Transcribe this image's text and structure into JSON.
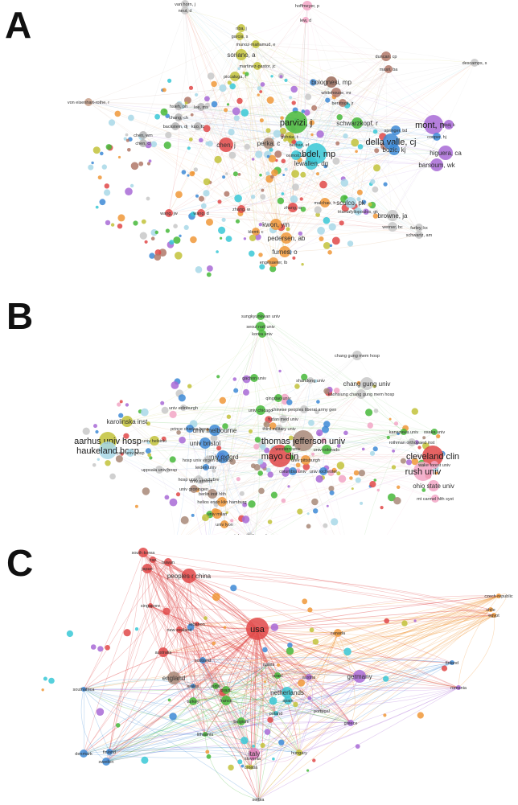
{
  "panels": [
    {
      "letter": "A",
      "nodes": [
        {
          "label": "van horn, j",
          "c": "#c8c8c8",
          "s": 5,
          "big": 0
        },
        {
          "label": "neut, d",
          "c": "#c8c8c8",
          "s": 5,
          "big": 0
        },
        {
          "label": "hoffmeyer, p",
          "c": "#f2a6c6",
          "s": 6,
          "big": 0
        },
        {
          "label": "lew, d",
          "c": "#f2a6c6",
          "s": 4,
          "big": 0
        },
        {
          "label": "riba, j",
          "c": "#c2c23a",
          "s": 5,
          "big": 0
        },
        {
          "label": "garcia, s",
          "c": "#c2c23a",
          "s": 5,
          "big": 0
        },
        {
          "label": "munoz-mahamud, e",
          "c": "#c2c23a",
          "s": 5,
          "big": 0
        },
        {
          "label": "soriano, a",
          "c": "#c2c23a",
          "s": 7,
          "big": 1
        },
        {
          "label": "martinez-pastor, jc",
          "c": "#c2c23a",
          "s": 5,
          "big": 0
        },
        {
          "label": "piccaluga, f",
          "c": "#c2c23a",
          "s": 6,
          "big": 0
        },
        {
          "label": "duncan, cp",
          "c": "#b07868",
          "s": 6,
          "big": 0
        },
        {
          "label": "masri, ba",
          "c": "#b07868",
          "s": 5,
          "big": 0
        },
        {
          "label": "descamps, s",
          "c": "#c8c8c8",
          "s": 5,
          "big": 0
        },
        {
          "label": "bolognesi, mp",
          "c": "#9a6a58",
          "s": 7,
          "big": 1
        },
        {
          "label": "whitehouse, mr",
          "c": "#b07868",
          "s": 6,
          "big": 0
        },
        {
          "label": "berstock, jr",
          "c": "#b07868",
          "s": 5,
          "big": 0
        },
        {
          "label": "von eisenhart-rothe, r",
          "c": "#c8a08a",
          "s": 5,
          "big": 0
        },
        {
          "label": "hsieh, ph",
          "c": "#b4b4b4",
          "s": 5,
          "big": 0
        },
        {
          "label": "lee, ms",
          "c": "#b4b4b4",
          "s": 5,
          "big": 0
        },
        {
          "label": "chang, ch",
          "c": "#b4b4b4",
          "s": 5,
          "big": 0
        },
        {
          "label": "parvizi, j",
          "c": "#46b83a",
          "s": 14,
          "big": 2
        },
        {
          "label": "schwarzkopf, r",
          "c": "#46b83a",
          "s": 7,
          "big": 1
        },
        {
          "label": "mont, ma",
          "c": "#a86ad6",
          "s": 12,
          "big": 2
        },
        {
          "label": "issa, k",
          "c": "#a86ad6",
          "s": 6,
          "big": 0
        },
        {
          "label": "higuera, ca",
          "c": "#a86ad6",
          "s": 9,
          "big": 1
        },
        {
          "label": "barsoum, wk",
          "c": "#a86ad6",
          "s": 8,
          "big": 1
        },
        {
          "label": "della valle, cj",
          "c": "#3d8ad6",
          "s": 10,
          "big": 2
        },
        {
          "label": "bozic, kj",
          "c": "#3d8ad6",
          "s": 7,
          "big": 1
        },
        {
          "label": "abdel, mp",
          "c": "#38c8d6",
          "s": 13,
          "big": 2
        },
        {
          "label": "lewallen, dg",
          "c": "#38c8d6",
          "s": 8,
          "big": 1
        },
        {
          "label": "chen, wm",
          "c": "#b4b4b4",
          "s": 5,
          "big": 0
        },
        {
          "label": "chen, cf",
          "c": "#b4b4b4",
          "s": 5,
          "big": 0
        },
        {
          "label": "chen, j",
          "c": "#e04848",
          "s": 9,
          "big": 1
        },
        {
          "label": "perka, c",
          "c": "#a88878",
          "s": 7,
          "big": 1
        },
        {
          "label": "zhang, w",
          "c": "#e04848",
          "s": 6,
          "big": 0
        },
        {
          "label": "wang, d",
          "c": "#e04848",
          "s": 5,
          "big": 0
        },
        {
          "label": "malchau, h",
          "c": "#f09838",
          "s": 6,
          "big": 0
        },
        {
          "label": "sculco, pk",
          "c": "#a8d8e8",
          "s": 7,
          "big": 1
        },
        {
          "label": "triantafyllopoulos, gk",
          "c": "#a8d8e8",
          "s": 5,
          "big": 0
        },
        {
          "label": "browne, ja",
          "c": "#c8c8c8",
          "s": 7,
          "big": 1
        },
        {
          "label": "werner, bc",
          "c": "#c8c8c8",
          "s": 6,
          "big": 0
        },
        {
          "label": "farley, kx",
          "c": "#c8c8c8",
          "s": 5,
          "big": 0
        },
        {
          "label": "schwartz, am",
          "c": "#c8c8c8",
          "s": 5,
          "big": 0
        },
        {
          "label": "kwon, ym",
          "c": "#f09838",
          "s": 7,
          "big": 1
        },
        {
          "label": "klemt, c",
          "c": "#f09838",
          "s": 5,
          "big": 0
        },
        {
          "label": "pedersen, ab",
          "c": "#f09838",
          "s": 7,
          "big": 1
        },
        {
          "label": "furnes, o",
          "c": "#f09838",
          "s": 7,
          "big": 1
        },
        {
          "label": "engesaeter, lb",
          "c": "#f09838",
          "s": 6,
          "big": 0
        },
        {
          "label": "cooper, hj",
          "c": "#3d8ad6",
          "s": 5,
          "big": 0
        },
        {
          "label": "springer, bd",
          "c": "#3d8ad6",
          "s": 6,
          "big": 0
        },
        {
          "label": "gehrke, t",
          "c": "#c2c23a",
          "s": 6,
          "big": 0
        },
        {
          "label": "osmon, dr",
          "c": "#38c8d6",
          "s": 6,
          "big": 0
        },
        {
          "label": "berbari, ef",
          "c": "#38c8d6",
          "s": 5,
          "big": 0
        },
        {
          "label": "backstein, dj",
          "c": "#b4b4b4",
          "s": 5,
          "big": 0
        },
        {
          "label": "kuo, fc",
          "c": "#b4b4b4",
          "s": 5,
          "big": 0
        },
        {
          "label": "zhang, w",
          "c": "#e04848",
          "s": 5,
          "big": 0
        },
        {
          "label": "wang, jw",
          "c": "#e04848",
          "s": 5,
          "big": 0
        }
      ]
    },
    {
      "letter": "B",
      "nodes": [
        {
          "label": "sungkyunkwan univ",
          "c": "#46b83a",
          "s": 5,
          "big": 0
        },
        {
          "label": "seoul natl univ",
          "c": "#46b83a",
          "s": 6,
          "big": 0
        },
        {
          "label": "korea univ",
          "c": "#46b83a",
          "s": 5,
          "big": 0
        },
        {
          "label": "gachon univ",
          "c": "#46b83a",
          "s": 5,
          "big": 0
        },
        {
          "label": "chang gung mem hosp",
          "c": "#c8c8c8",
          "s": 6,
          "big": 0
        },
        {
          "label": "shandong univ",
          "c": "#c8c8c8",
          "s": 4,
          "big": 0
        },
        {
          "label": "chang gung univ",
          "c": "#c8c8c8",
          "s": 8,
          "big": 1
        },
        {
          "label": "kaohsiung chang gung mem hosp",
          "c": "#c8c8c8",
          "s": 6,
          "big": 0
        },
        {
          "label": "qingdao univ",
          "c": "#46b83a",
          "s": 5,
          "big": 0
        },
        {
          "label": "univ chicago",
          "c": "#46b83a",
          "s": 6,
          "big": 0
        },
        {
          "label": "chinese peoples liberat army gen",
          "c": "#c8c8c8",
          "s": 5,
          "big": 0
        },
        {
          "label": "fudan med univ",
          "c": "#c8c8c8",
          "s": 5,
          "big": 0
        },
        {
          "label": "third military univ",
          "c": "#c8c8c8",
          "s": 5,
          "big": 0
        },
        {
          "label": "univ edinburgh",
          "c": "#c8c8c8",
          "s": 4,
          "big": 0
        },
        {
          "label": "karolinska inst",
          "c": "#c2c23a",
          "s": 7,
          "big": 1
        },
        {
          "label": "prince charles hosp",
          "c": "#3d8ad6",
          "s": 5,
          "big": 0
        },
        {
          "label": "univ melbourne",
          "c": "#3d8ad6",
          "s": 7,
          "big": 1
        },
        {
          "label": "aarhus univ hosp",
          "c": "#c2c23a",
          "s": 11,
          "big": 2
        },
        {
          "label": "univ helsinki",
          "c": "#c2c23a",
          "s": 6,
          "big": 0
        },
        {
          "label": "haukeland hosp",
          "c": "#a8d8e8",
          "s": 11,
          "big": 2
        },
        {
          "label": "oslo univ hosp",
          "c": "#a8d8e8",
          "s": 5,
          "big": 0
        },
        {
          "label": "univ bristol",
          "c": "#3d8ad6",
          "s": 7,
          "big": 1
        },
        {
          "label": "univ oxford",
          "c": "#3d8ad6",
          "s": 8,
          "big": 1
        },
        {
          "label": "hosp univ virgen del rocio",
          "c": "#c8c8c8",
          "s": 5,
          "big": 0
        },
        {
          "label": "uppsala univ hosp",
          "c": "#c8c8c8",
          "s": 5,
          "big": 0
        },
        {
          "label": "hosp univ 12 octubre",
          "c": "#c8c8c8",
          "s": 5,
          "big": 0
        },
        {
          "label": "univ groningen",
          "c": "#a88878",
          "s": 5,
          "big": 0
        },
        {
          "label": "thomas jefferson univ",
          "c": "#a88878",
          "s": 13,
          "big": 2
        },
        {
          "label": "mayo clin",
          "c": "#e04848",
          "s": 14,
          "big": 2
        },
        {
          "label": "cleveland clin",
          "c": "#e04848",
          "s": 13,
          "big": 2
        },
        {
          "label": "rush univ",
          "c": "#f2a6c6",
          "s": 12,
          "big": 2
        },
        {
          "label": "univ colorado",
          "c": "#46b83a",
          "s": 6,
          "big": 0
        },
        {
          "label": "univ pittsburgh",
          "c": "#f09838",
          "s": 6,
          "big": 0
        },
        {
          "label": "western univ",
          "c": "#46b83a",
          "s": 5,
          "big": 0
        },
        {
          "label": "univ rochester",
          "c": "#3d8ad6",
          "s": 5,
          "big": 0
        },
        {
          "label": "columbia univ",
          "c": "#3d8ad6",
          "s": 5,
          "big": 0
        },
        {
          "label": "rothman orthopaed inst",
          "c": "#c8c8c8",
          "s": 5,
          "big": 0
        },
        {
          "label": "wake forest univ",
          "c": "#f2a6c6",
          "s": 5,
          "big": 0
        },
        {
          "label": "ohio state univ",
          "c": "#f2a6c6",
          "s": 7,
          "big": 1
        },
        {
          "label": "mt carmel hlth syst",
          "c": "#f2a6c6",
          "s": 5,
          "big": 0
        },
        {
          "label": "kanazawa univ",
          "c": "#46b83a",
          "s": 4,
          "big": 0
        },
        {
          "label": "osaka univ",
          "c": "#46b83a",
          "s": 4,
          "big": 0
        },
        {
          "label": "berlin inst hlth",
          "c": "#a88878",
          "s": 6,
          "big": 0
        },
        {
          "label": "helios endo klin hamburg",
          "c": "#f09838",
          "s": 6,
          "big": 0
        },
        {
          "label": "univ milan",
          "c": "#f09838",
          "s": 6,
          "big": 0
        },
        {
          "label": "univ lyon",
          "c": "#f09838",
          "s": 5,
          "big": 0
        },
        {
          "label": "ctr hospitalier sud",
          "c": "#c8c8c8",
          "s": 4,
          "big": 0
        },
        {
          "label": "hop pitie salpetriere",
          "c": "#a86ad6",
          "s": 4,
          "big": 0
        },
        {
          "label": "univ hosp geneva",
          "c": "#a86ad6",
          "s": 4,
          "big": 0
        },
        {
          "label": "santa corona hosp",
          "c": "#f09838",
          "s": 4,
          "big": 0
        },
        {
          "label": "univ bern",
          "c": "#a86ad6",
          "s": 4,
          "big": 0
        },
        {
          "label": "ruhr univ bochum",
          "c": "#a86ad6",
          "s": 4,
          "big": 0
        },
        {
          "label": "aix marseille univ",
          "c": "#f2a6c6",
          "s": 4,
          "big": 0
        },
        {
          "label": "univ athens",
          "c": "#c8c8c8",
          "s": 4,
          "big": 0
        },
        {
          "label": "leiden univ",
          "c": "#3d8ad6",
          "s": 4,
          "big": 0
        }
      ]
    },
    {
      "letter": "C",
      "nodes": [
        {
          "label": "south korea",
          "c": "#e04848",
          "s": 6,
          "big": 0
        },
        {
          "label": "iran",
          "c": "#e04848",
          "s": 4,
          "big": 0
        },
        {
          "label": "taiwan",
          "c": "#e04848",
          "s": 5,
          "big": 0
        },
        {
          "label": "japan",
          "c": "#e04848",
          "s": 6,
          "big": 0
        },
        {
          "label": "peoples r china",
          "c": "#e04848",
          "s": 9,
          "big": 1
        },
        {
          "label": "singapore",
          "c": "#e04848",
          "s": 3,
          "big": 0
        },
        {
          "label": "usa",
          "c": "#e04848",
          "s": 14,
          "big": 2
        },
        {
          "label": "canada",
          "c": "#f09838",
          "s": 5,
          "big": 0
        },
        {
          "label": "czech republic",
          "c": "#f09838",
          "s": 3,
          "big": 0
        },
        {
          "label": "chile",
          "c": "#f09838",
          "s": 3,
          "big": 0
        },
        {
          "label": "egypt",
          "c": "#f09838",
          "s": 3,
          "big": 0
        },
        {
          "label": "lebanon",
          "c": "#e04848",
          "s": 3,
          "big": 0
        },
        {
          "label": "new zealand",
          "c": "#e04848",
          "s": 4,
          "big": 0
        },
        {
          "label": "australia",
          "c": "#e04848",
          "s": 6,
          "big": 0
        },
        {
          "label": "scotland",
          "c": "#3d8ad6",
          "s": 4,
          "big": 0
        },
        {
          "label": "england",
          "c": "#a88878",
          "s": 8,
          "big": 1
        },
        {
          "label": "germany",
          "c": "#a86ad6",
          "s": 8,
          "big": 1
        },
        {
          "label": "finland",
          "c": "#3d8ad6",
          "s": 3,
          "big": 0
        },
        {
          "label": "romania",
          "c": "#a86ad6",
          "s": 3,
          "big": 0
        },
        {
          "label": "israel",
          "c": "#46b83a",
          "s": 4,
          "big": 0
        },
        {
          "label": "austria",
          "c": "#a86ad6",
          "s": 4,
          "big": 0
        },
        {
          "label": "netherlands",
          "c": "#38c8d6",
          "s": 7,
          "big": 1
        },
        {
          "label": "spain",
          "c": "#38c8d6",
          "s": 5,
          "big": 0
        },
        {
          "label": "brazil",
          "c": "#46b83a",
          "s": 5,
          "big": 0
        },
        {
          "label": "france",
          "c": "#46b83a",
          "s": 6,
          "big": 0
        },
        {
          "label": "turkey",
          "c": "#46b83a",
          "s": 5,
          "big": 0
        },
        {
          "label": "portugal",
          "c": "#c8c8c8",
          "s": 3,
          "big": 0
        },
        {
          "label": "greece",
          "c": "#a86ad6",
          "s": 4,
          "big": 0
        },
        {
          "label": "belgium",
          "c": "#46b83a",
          "s": 5,
          "big": 0
        },
        {
          "label": "southafrica",
          "c": "#3d8ad6",
          "s": 3,
          "big": 0
        },
        {
          "label": "finland",
          "c": "#3d8ad6",
          "s": 4,
          "big": 0
        },
        {
          "label": "sweden",
          "c": "#3d8ad6",
          "s": 5,
          "big": 0
        },
        {
          "label": "denmark",
          "c": "#3d8ad6",
          "s": 5,
          "big": 0
        },
        {
          "label": "lithuania",
          "c": "#46b83a",
          "s": 3,
          "big": 0
        },
        {
          "label": "italy",
          "c": "#e080c0",
          "s": 7,
          "big": 1
        },
        {
          "label": "slovenia",
          "c": "#e080c0",
          "s": 3,
          "big": 0
        },
        {
          "label": "hungary",
          "c": "#c2c23a",
          "s": 4,
          "big": 0
        },
        {
          "label": "croatia",
          "c": "#c2c23a",
          "s": 3,
          "big": 0
        },
        {
          "label": "serbia",
          "c": "#c8c8c8",
          "s": 3,
          "big": 0
        },
        {
          "label": "russia",
          "c": "#c8c8c8",
          "s": 3,
          "big": 0
        },
        {
          "label": "india",
          "c": "#46b83a",
          "s": 4,
          "big": 0
        },
        {
          "label": "poland",
          "c": "#38c8d6",
          "s": 3,
          "big": 0
        },
        {
          "label": "wales",
          "c": "#3d8ad6",
          "s": 3,
          "big": 0
        }
      ]
    }
  ]
}
